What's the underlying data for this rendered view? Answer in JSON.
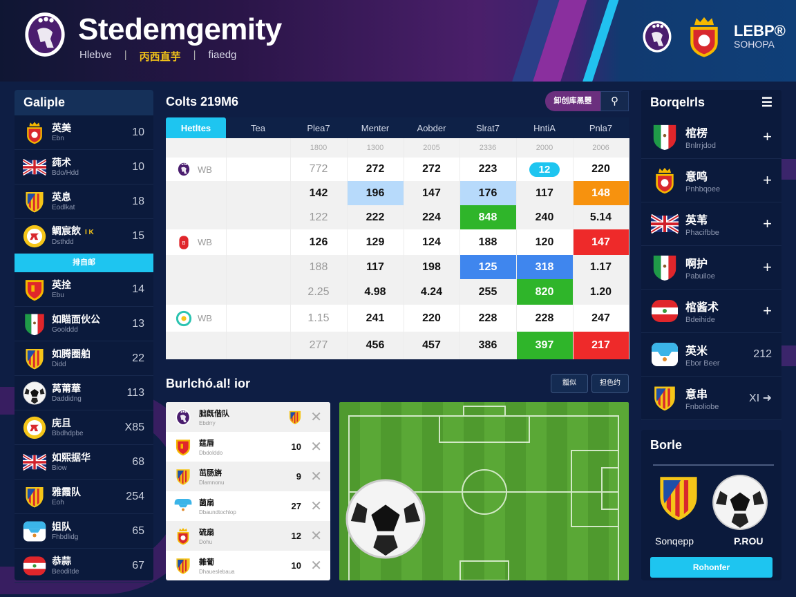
{
  "header": {
    "title": "Stedemgemity",
    "nav": [
      "Hlebve",
      "丙西直芋",
      "fiaedg"
    ],
    "nav_active": 1,
    "brand_line1": "LEBP®",
    "brand_line2": "SOHOPA"
  },
  "left_panel": {
    "title": "Galiple",
    "highlight_label": "排自邮",
    "items": [
      {
        "icon": "crown-crest-icon",
        "name": "英美",
        "sub": "Ebn",
        "value": "10"
      },
      {
        "icon": "union-jack-icon",
        "name": "莼术",
        "sub": "Bdo/Hdd",
        "value": "10"
      },
      {
        "icon": "striped-shield-icon",
        "name": "英息",
        "sub": "Eodlkat",
        "value": "18"
      },
      {
        "icon": "round-badge-icon",
        "name": "鲷宸飲",
        "sub": "Dsthdd",
        "value": "15",
        "tag": "I K"
      },
      {
        "icon": "red-shield-icon",
        "name": "英拴",
        "sub": "Ebu",
        "value": "14"
      },
      {
        "icon": "italy-flag-icon",
        "name": "如瞄面伙公",
        "sub": "Goolddd",
        "value": "13"
      },
      {
        "icon": "striped-shield-icon",
        "name": "如腾圈舶",
        "sub": "Didd",
        "value": "22"
      },
      {
        "icon": "soccer-ball-icon",
        "name": "莴莆華",
        "sub": "Daddidng",
        "value": "113"
      },
      {
        "icon": "round-badge-icon",
        "name": "庑且",
        "sub": "Bbdhdpbe",
        "value": "X85"
      },
      {
        "icon": "union-jack-icon",
        "name": "如熙据华",
        "sub": "Biow",
        "value": "68"
      },
      {
        "icon": "striped-shield-icon",
        "name": "雅霞队",
        "sub": "Eoh",
        "value": "254"
      },
      {
        "icon": "argentina-badge-icon",
        "name": "姐队",
        "sub": "Fhbdlidg",
        "value": "65"
      },
      {
        "icon": "austria-badge-icon",
        "name": "恭蒜",
        "sub": "Beoditde",
        "value": "67"
      }
    ]
  },
  "odds": {
    "title": "Colts 219M6",
    "action_label": "卸创库黑瞾",
    "action_icon": "user-search-icon",
    "columns": [
      "Hetltes",
      "Tea",
      "Plea7",
      "Menter",
      "Aobder",
      "Slrat7",
      "HntiA",
      "Pnla7"
    ],
    "years": [
      "1800",
      "1300",
      "2005",
      "2336",
      "2000",
      "2006"
    ],
    "rows": [
      {
        "team": "WB",
        "team_icon": "lion-crest-icon",
        "bg": "w",
        "cells": [
          {
            "v": "772",
            "hl": "muted"
          },
          {
            "v": "272"
          },
          {
            "v": "272"
          },
          {
            "v": "223"
          },
          {
            "v": "12",
            "hl": "pill"
          },
          {
            "v": "220"
          }
        ]
      },
      {
        "bg": "g",
        "cells": [
          {
            "v": "142"
          },
          {
            "v": "196",
            "hl": "light-blue"
          },
          {
            "v": "147"
          },
          {
            "v": "176",
            "hl": "light-blue"
          },
          {
            "v": "117"
          },
          {
            "v": "148",
            "hl": "orange"
          }
        ]
      },
      {
        "bg": "g",
        "cells": [
          {
            "v": "122",
            "hl": "muted"
          },
          {
            "v": "222"
          },
          {
            "v": "224"
          },
          {
            "v": "848",
            "hl": "green"
          },
          {
            "v": "240"
          },
          {
            "v": "5.14"
          }
        ]
      },
      {
        "team": "WB",
        "team_icon": "red-badge-icon",
        "bg": "w",
        "cells": [
          {
            "v": "126"
          },
          {
            "v": "129"
          },
          {
            "v": "124"
          },
          {
            "v": "188"
          },
          {
            "v": "120"
          },
          {
            "v": "147",
            "hl": "red"
          }
        ]
      },
      {
        "bg": "g",
        "cells": [
          {
            "v": "188",
            "hl": "muted"
          },
          {
            "v": "117"
          },
          {
            "v": "198"
          },
          {
            "v": "125",
            "hl": "blue"
          },
          {
            "v": "318",
            "hl": "blue"
          },
          {
            "v": "1.17"
          }
        ]
      },
      {
        "bg": "g",
        "cells": [
          {
            "v": "2.25",
            "hl": "muted"
          },
          {
            "v": "4.98"
          },
          {
            "v": "4.24"
          },
          {
            "v": "255"
          },
          {
            "v": "820",
            "hl": "green"
          },
          {
            "v": "1.20"
          }
        ]
      },
      {
        "team": "WB",
        "team_icon": "teal-ring-icon",
        "bg": "w",
        "cells": [
          {
            "v": "1.15",
            "hl": "muted"
          },
          {
            "v": "241"
          },
          {
            "v": "220"
          },
          {
            "v": "228"
          },
          {
            "v": "228"
          },
          {
            "v": "247"
          }
        ]
      },
      {
        "bg": "g",
        "cells": [
          {
            "v": "277",
            "hl": "muted"
          },
          {
            "v": "456"
          },
          {
            "v": "457"
          },
          {
            "v": "386"
          },
          {
            "v": "397",
            "hl": "green"
          },
          {
            "v": "217",
            "hl": "red"
          }
        ]
      }
    ]
  },
  "lineup": {
    "title": "Burlchó.alǃ ior",
    "buttons": [
      "瓢似",
      "担色约"
    ],
    "items": [
      {
        "icon": "lion-crest-icon",
        "name": "朏旣偕队",
        "sub": "Ebdrry",
        "value": "",
        "value_icon": "striped-shield-icon"
      },
      {
        "icon": "red-shield-icon",
        "name": "莛唇",
        "sub": "Dbdolddo",
        "value": "10"
      },
      {
        "icon": "striped-shield-icon",
        "name": "茁肠旃",
        "sub": "Dlamnonu",
        "value": "9"
      },
      {
        "icon": "argentina-badge-icon",
        "name": "菌扇",
        "sub": "Dbaundtochlop",
        "value": "27"
      },
      {
        "icon": "crown-crest-icon",
        "name": "硫扇",
        "sub": "Dohu",
        "value": "12"
      },
      {
        "icon": "striped-shield-icon",
        "name": "雜葡",
        "sub": "Dhaueslebaua",
        "value": "10"
      }
    ]
  },
  "right_panel": {
    "title": "Borqelrls",
    "items": [
      {
        "icon": "italy-flag-icon",
        "name": "棺楞",
        "sub": "Bnlrrjdod",
        "action": "+"
      },
      {
        "icon": "crown-crest-icon",
        "name": "意鸣",
        "sub": "Pnhbqoee",
        "action": "+"
      },
      {
        "icon": "union-jack-icon",
        "name": "英苇",
        "sub": "Phacifbbe",
        "action": "+"
      },
      {
        "icon": "italy-flag-icon",
        "name": "啊护",
        "sub": "Pabuiloe",
        "action": "+"
      },
      {
        "icon": "austria-badge-icon",
        "name": "棺酱术",
        "sub": "Bdeihide",
        "action": "+"
      },
      {
        "icon": "argentina-badge-icon",
        "name": "英米",
        "sub": "Ebor Beer",
        "action": "212"
      },
      {
        "icon": "striped-shield-icon",
        "name": "意串",
        "sub": "Fnboliobe",
        "action": "XI ➜"
      }
    ]
  },
  "match_card": {
    "title": "Borle",
    "home": "Sonqepp",
    "away": "P.ROU",
    "button": "Rohonfer"
  },
  "colors": {
    "accent_cyan": "#1ec5f0",
    "purple": "#6b2f7e",
    "navy": "#0e1e44",
    "green": "#2fb52a",
    "red": "#ee2a2a",
    "orange": "#f7920e"
  }
}
